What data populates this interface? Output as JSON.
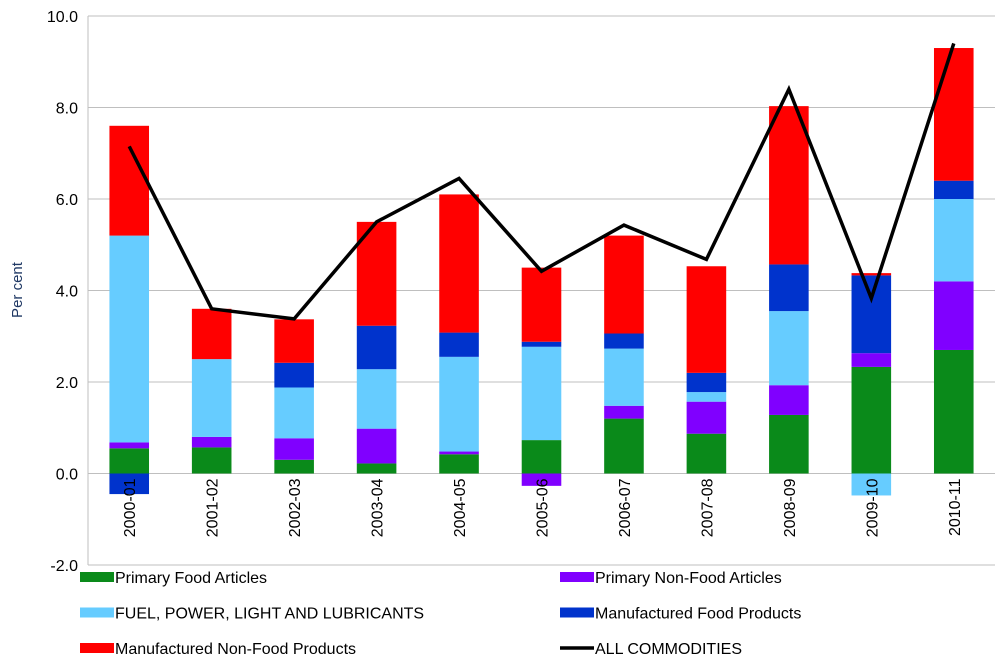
{
  "chart_data": {
    "type": "bar",
    "stacked": true,
    "y_label": "Per cent",
    "categories": [
      "2000-01",
      "2001-02",
      "2002-03",
      "2003-04",
      "2004-05",
      "2005-06",
      "2006-07",
      "2007-08",
      "2008-09",
      "2009-10",
      "2010-11"
    ],
    "series": [
      {
        "name": "Primary Food Articles",
        "color": "#0a8a1a",
        "values": [
          0.55,
          0.57,
          0.3,
          0.22,
          0.42,
          0.73,
          1.2,
          0.87,
          1.28,
          2.33,
          2.7
        ]
      },
      {
        "name": "Primary Non-Food Articles",
        "color": "#8000ff",
        "values": [
          0.13,
          0.23,
          0.47,
          0.76,
          0.06,
          -0.27,
          0.28,
          0.7,
          0.65,
          0.3,
          1.5
        ]
      },
      {
        "name": "FUEL, POWER, LIGHT AND LUBRICANTS",
        "color": "#66ccff",
        "values": [
          4.52,
          1.7,
          1.11,
          1.3,
          2.07,
          2.04,
          1.25,
          0.21,
          1.62,
          -0.48,
          1.8
        ]
      },
      {
        "name": "Manufactured Food Products",
        "color": "#0033cc",
        "values": [
          -0.45,
          0,
          0.54,
          0.95,
          0.53,
          0.11,
          0.33,
          0.42,
          1.02,
          1.7,
          0.4
        ]
      },
      {
        "name": "Manufactured Non-Food Products",
        "color": "#ff0000",
        "values": [
          2.4,
          1.1,
          0.95,
          2.27,
          3.02,
          1.62,
          2.14,
          2.33,
          3.46,
          0.05,
          2.9
        ]
      },
      {
        "name": "ALL COMMODITIES",
        "color": "#000000",
        "type": "line",
        "values": [
          7.15,
          3.6,
          3.38,
          5.5,
          6.45,
          4.42,
          5.43,
          4.68,
          8.4,
          3.83,
          9.4
        ]
      }
    ],
    "ylim": [
      -2,
      10
    ],
    "yticks": [
      {
        "value": -2,
        "label": "-2.0"
      },
      {
        "value": 0,
        "label": "0.0"
      },
      {
        "value": 2,
        "label": "2.0"
      },
      {
        "value": 4,
        "label": "4.0"
      },
      {
        "value": 6,
        "label": "6.0"
      },
      {
        "value": 8,
        "label": "8.0"
      },
      {
        "value": 10,
        "label": "10.0"
      }
    ],
    "grid": true
  }
}
